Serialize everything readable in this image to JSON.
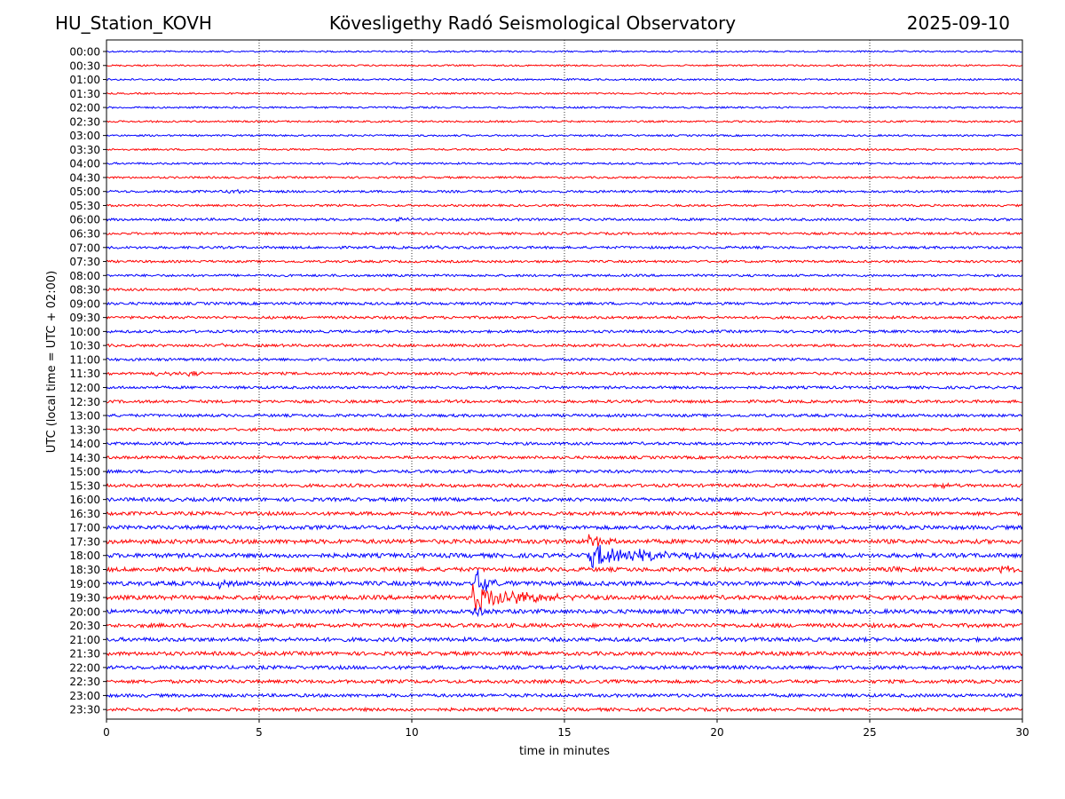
{
  "header": {
    "station": "HU_Station_KOVH",
    "title": "Kövesligethy Radó Seismological Observatory",
    "date": "2025-09-10"
  },
  "chart_data": {
    "type": "line",
    "chart_kind": "helicorder",
    "xlabel": "time in minutes",
    "ylabel": "UTC (local time = UTC + 02:00)",
    "xlim": [
      0,
      30
    ],
    "x_ticks": [
      0,
      5,
      10,
      15,
      20,
      25,
      30
    ],
    "grid_x": [
      5,
      10,
      15,
      20,
      25
    ],
    "grid": "dotted vertical lines",
    "row_colors": [
      "#0000ff",
      "#ff0000"
    ],
    "rows": [
      {
        "label": "00:00",
        "noise": 0.9,
        "events": []
      },
      {
        "label": "00:30",
        "noise": 0.9,
        "events": []
      },
      {
        "label": "01:00",
        "noise": 1.0,
        "events": []
      },
      {
        "label": "01:30",
        "noise": 0.9,
        "events": []
      },
      {
        "label": "02:00",
        "noise": 1.0,
        "events": []
      },
      {
        "label": "02:30",
        "noise": 1.0,
        "events": []
      },
      {
        "label": "03:00",
        "noise": 1.0,
        "events": []
      },
      {
        "label": "03:30",
        "noise": 1.0,
        "events": []
      },
      {
        "label": "04:00",
        "noise": 1.1,
        "events": []
      },
      {
        "label": "04:30",
        "noise": 1.1,
        "events": []
      },
      {
        "label": "05:00",
        "noise": 1.3,
        "events": [
          {
            "t": 4.0,
            "amp": 2,
            "dur": 0.6
          }
        ]
      },
      {
        "label": "05:30",
        "noise": 1.2,
        "events": []
      },
      {
        "label": "06:00",
        "noise": 1.4,
        "events": [
          {
            "t": 9.5,
            "amp": 3.5,
            "dur": 0.4
          }
        ]
      },
      {
        "label": "06:30",
        "noise": 1.3,
        "events": []
      },
      {
        "label": "07:00",
        "noise": 1.4,
        "events": [
          {
            "t": 10.5,
            "amp": 2,
            "dur": 0.4
          }
        ]
      },
      {
        "label": "07:30",
        "noise": 1.3,
        "events": []
      },
      {
        "label": "08:00",
        "noise": 1.3,
        "events": []
      },
      {
        "label": "08:30",
        "noise": 1.4,
        "events": []
      },
      {
        "label": "09:00",
        "noise": 1.5,
        "events": []
      },
      {
        "label": "09:30",
        "noise": 1.5,
        "events": []
      },
      {
        "label": "10:00",
        "noise": 1.5,
        "events": []
      },
      {
        "label": "10:30",
        "noise": 1.5,
        "events": [
          {
            "t": 3.7,
            "amp": 2.5,
            "dur": 0.4
          }
        ]
      },
      {
        "label": "11:00",
        "noise": 1.5,
        "events": []
      },
      {
        "label": "11:30",
        "noise": 1.5,
        "events": [
          {
            "t": 1.6,
            "amp": 3,
            "dur": 0.6
          },
          {
            "t": 2.7,
            "amp": 3,
            "dur": 0.3
          }
        ]
      },
      {
        "label": "12:00",
        "noise": 1.5,
        "events": []
      },
      {
        "label": "12:30",
        "noise": 1.6,
        "events": []
      },
      {
        "label": "13:00",
        "noise": 1.6,
        "events": []
      },
      {
        "label": "13:30",
        "noise": 1.6,
        "events": []
      },
      {
        "label": "14:00",
        "noise": 1.6,
        "events": []
      },
      {
        "label": "14:30",
        "noise": 1.6,
        "events": []
      },
      {
        "label": "15:00",
        "noise": 1.7,
        "events": []
      },
      {
        "label": "15:30",
        "noise": 1.8,
        "events": [
          {
            "t": 27.3,
            "amp": 3,
            "dur": 0.3
          }
        ]
      },
      {
        "label": "16:00",
        "noise": 2.0,
        "events": []
      },
      {
        "label": "16:30",
        "noise": 2.0,
        "events": []
      },
      {
        "label": "17:00",
        "noise": 2.2,
        "events": []
      },
      {
        "label": "17:30",
        "noise": 2.4,
        "events": [
          {
            "t": 15.8,
            "amp": 8,
            "dur": 0.5
          }
        ]
      },
      {
        "label": "18:00",
        "noise": 2.4,
        "events": [
          {
            "t": 15.8,
            "amp": 14,
            "dur": 1.8
          }
        ]
      },
      {
        "label": "18:30",
        "noise": 2.3,
        "events": [
          {
            "t": 25.6,
            "amp": 4,
            "dur": 0.3
          },
          {
            "t": 29.3,
            "amp": 6,
            "dur": 0.4
          }
        ]
      },
      {
        "label": "19:00",
        "noise": 2.4,
        "events": [
          {
            "t": 12.1,
            "amp": 16,
            "dur": 0.4
          },
          {
            "t": 3.7,
            "amp": 4,
            "dur": 0.3
          }
        ]
      },
      {
        "label": "19:30",
        "noise": 2.4,
        "events": [
          {
            "t": 12.0,
            "amp": 16,
            "dur": 1.4
          }
        ]
      },
      {
        "label": "20:00",
        "noise": 2.3,
        "events": [
          {
            "t": 12.0,
            "amp": 9,
            "dur": 0.4
          }
        ]
      },
      {
        "label": "20:30",
        "noise": 2.2,
        "events": []
      },
      {
        "label": "21:00",
        "noise": 2.2,
        "events": []
      },
      {
        "label": "21:30",
        "noise": 2.1,
        "events": []
      },
      {
        "label": "22:00",
        "noise": 2.0,
        "events": []
      },
      {
        "label": "22:30",
        "noise": 1.9,
        "events": []
      },
      {
        "label": "23:00",
        "noise": 1.8,
        "events": []
      },
      {
        "label": "23:30",
        "noise": 1.8,
        "events": []
      }
    ]
  }
}
